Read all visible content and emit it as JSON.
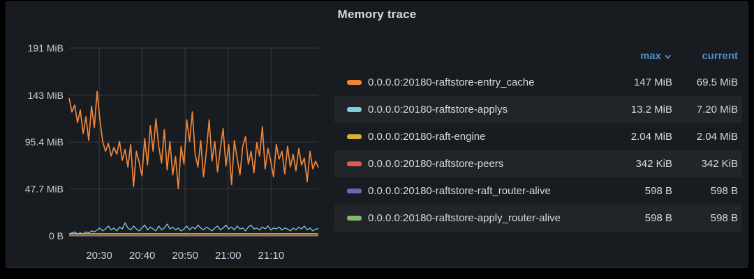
{
  "panel": {
    "title": "Memory trace"
  },
  "colors": {
    "accent_blue": "#4f8cc9",
    "panel_bg": "#181b1f",
    "grid": "rgba(204,204,220,0.18)",
    "tick_text": "#ccd0d9"
  },
  "legend": {
    "headers": {
      "max": "max",
      "current": "current"
    },
    "sorted_by": "max",
    "sort_direction": "desc"
  },
  "chart_data": {
    "type": "line",
    "title": "Memory trace",
    "xlabel": "",
    "ylabel": "",
    "grid": true,
    "legend_position": "right-table",
    "ylim_mib": [
      0,
      191
    ],
    "y_ticks": [
      {
        "mib": 0,
        "label": "0 B"
      },
      {
        "mib": 47.7,
        "label": "47.7 MiB"
      },
      {
        "mib": 95.4,
        "label": "95.4 MiB"
      },
      {
        "mib": 143,
        "label": "143 MiB"
      },
      {
        "mib": 191,
        "label": "191 MiB"
      }
    ],
    "x_range_minutes": [
      1223,
      1281
    ],
    "x_ticks": [
      {
        "minute": 1230,
        "label": "20:30"
      },
      {
        "minute": 1240,
        "label": "20:40"
      },
      {
        "minute": 1250,
        "label": "20:50"
      },
      {
        "minute": 1260,
        "label": "21:00"
      },
      {
        "minute": 1270,
        "label": "21:10"
      }
    ],
    "series": [
      {
        "name": "0.0.0.0:20180-raftstore-entry_cache",
        "color": "#ed863c",
        "max": "147 MiB",
        "current": "69.5 MiB",
        "values_mib": [
          140,
          126,
          133,
          115,
          128,
          104,
          121,
          97,
          132,
          110,
          147,
          118,
          96,
          86,
          94,
          81,
          90,
          83,
          96,
          77,
          88,
          70,
          93,
          50,
          86,
          75,
          61,
          99,
          72,
          112,
          86,
          119,
          91,
          74,
          108,
          67,
          96,
          62,
          81,
          48,
          91,
          73,
          118,
          96,
          126,
          83,
          70,
          97,
          60,
          86,
          118,
          76,
          96,
          65,
          89,
          109,
          71,
          93,
          52,
          97,
          79,
          62,
          91,
          101,
          73,
          86,
          64,
          95,
          81,
          111,
          68,
          89,
          76,
          60,
          93,
          78,
          86,
          63,
          91,
          70,
          83,
          66,
          89,
          72,
          79,
          55,
          86,
          68,
          76,
          69.5
        ]
      },
      {
        "name": "0.0.0.0:20180-raftstore-applys",
        "color": "#82cbdc",
        "max": "13.2 MiB",
        "current": "7.20 MiB",
        "values_mib": [
          2,
          3,
          4,
          2,
          3,
          2,
          4,
          3,
          5,
          4,
          6,
          8,
          5,
          7,
          10,
          6,
          8,
          5,
          9,
          7,
          13.2,
          8,
          6,
          10,
          7,
          5,
          8,
          11,
          6,
          9,
          7,
          5,
          10,
          6,
          8,
          12,
          7,
          9,
          6,
          8,
          5,
          7,
          10,
          6,
          9,
          7,
          11,
          8,
          6,
          9,
          7,
          5,
          8,
          10,
          6,
          8,
          11,
          7,
          9,
          6,
          10,
          7,
          8,
          5,
          9,
          11,
          7,
          8,
          6,
          9,
          7,
          10,
          6,
          8,
          7,
          9,
          6,
          8,
          7,
          5,
          8,
          6,
          9,
          7,
          10,
          6,
          8,
          5,
          7,
          7.2
        ]
      },
      {
        "name": "0.0.0.0:20180-raft-engine",
        "color": "#d9af35",
        "max": "2.04 MiB",
        "current": "2.04 MiB",
        "values_mib": [
          2.04
        ]
      },
      {
        "name": "0.0.0.0:20180-raftstore-peers",
        "color": "#e05a50",
        "max": "342 KiB",
        "current": "342 KiB",
        "values_mib": [
          0.334
        ]
      },
      {
        "name": "0.0.0.0:20180-raftstore-raft_router-alive",
        "color": "#7065b5",
        "max": "598 B",
        "current": "598 B",
        "values_mib": [
          0.0006
        ]
      },
      {
        "name": "0.0.0.0:20180-raftstore-apply_router-alive",
        "color": "#84ba6c",
        "max": "598 B",
        "current": "598 B",
        "values_mib": [
          0.0006
        ]
      }
    ]
  }
}
